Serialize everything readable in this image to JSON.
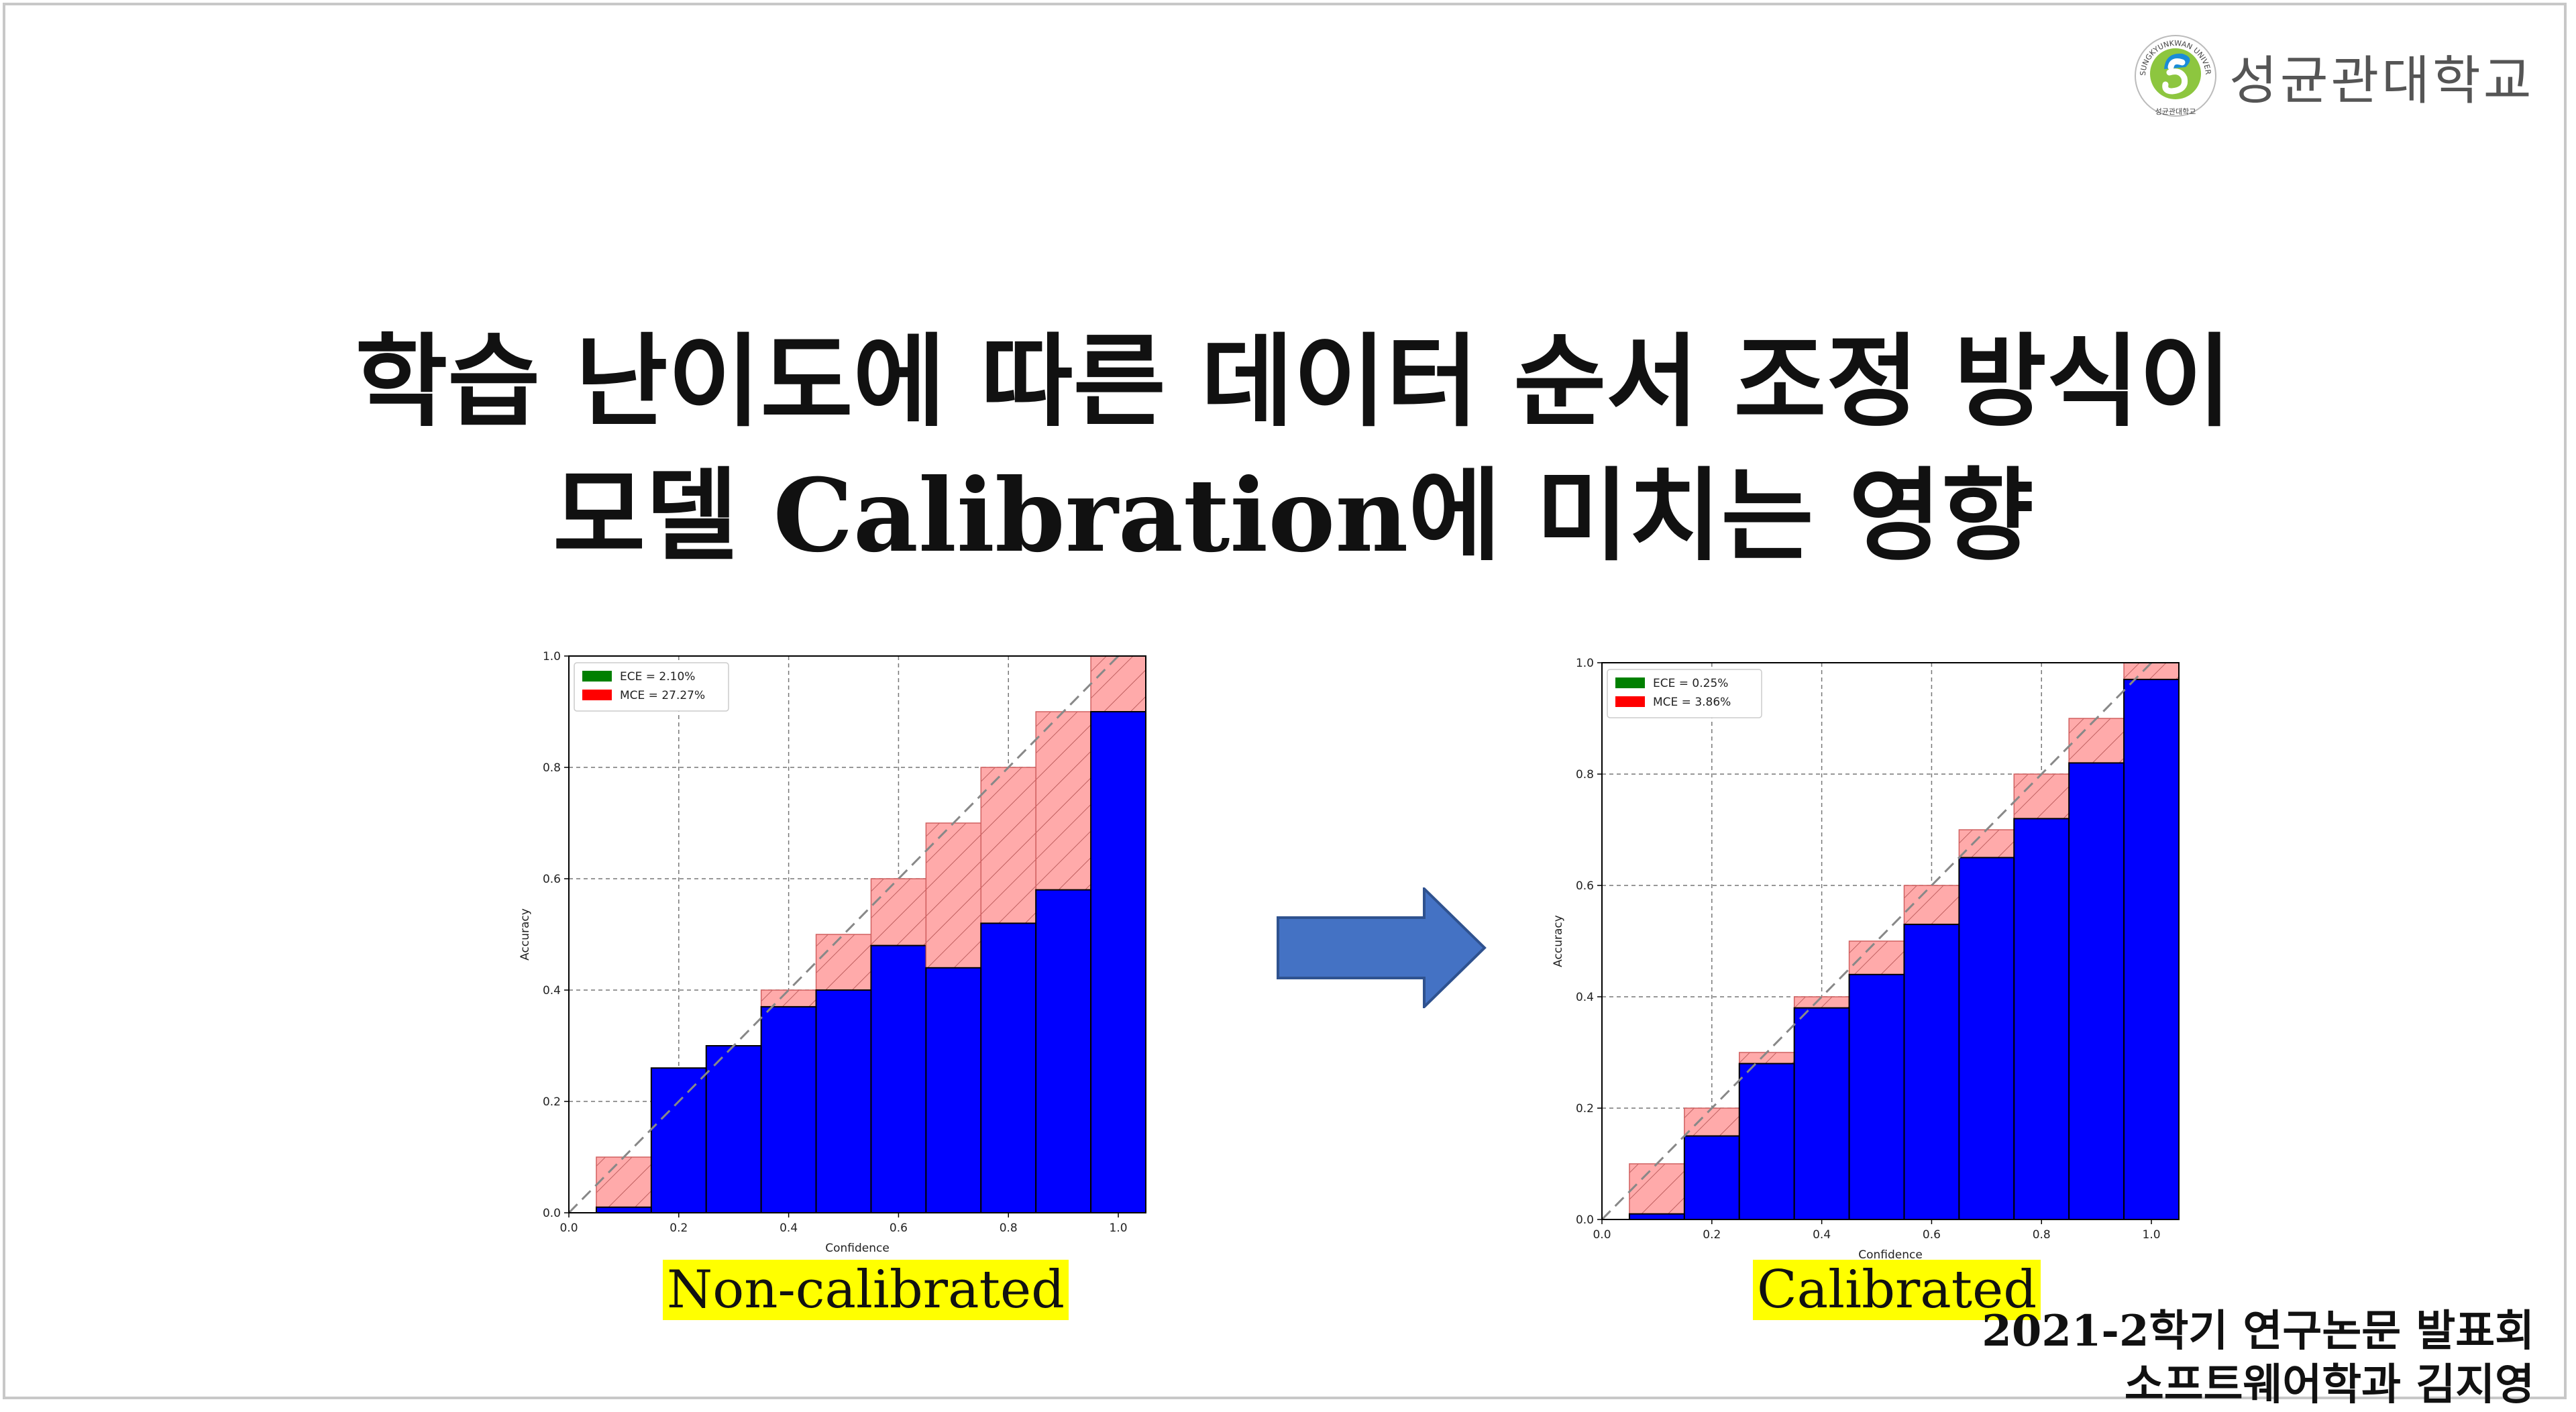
{
  "header": {
    "logo_text": "성균관대학교",
    "logo_ring_text": "SUNGKYUNKWAN UNIVERSITY",
    "logo_sub_text": "성균관대학교"
  },
  "title": {
    "line1": "학습 난이도에 따른 데이터 순서 조정 방식이",
    "line2": "모델 Calibration에 미치는 영향"
  },
  "captions": {
    "left": "Non-calibrated",
    "right": "Calibrated"
  },
  "footer": {
    "line1": "2021-2학기 연구논문 발표회",
    "line2": "소프트웨어학과 김지영"
  },
  "colors": {
    "bar": "#0000ff",
    "gap": "#ffaaaa",
    "ece_legend": "#008000",
    "mce_legend": "#ff0000",
    "arrow_fill": "#4472c4",
    "arrow_stroke": "#2f528f",
    "caption_highlight": "#ffff00"
  },
  "chart_data": [
    {
      "type": "bar",
      "caption": "Non-calibrated",
      "xlabel": "Confidence",
      "ylabel": "Accuracy",
      "xlim": [
        0.0,
        1.05
      ],
      "ylim": [
        0.0,
        1.0
      ],
      "xticks": [
        "0.0",
        "0.2",
        "0.4",
        "0.6",
        "0.8",
        "1.0"
      ],
      "yticks": [
        "0.0",
        "0.2",
        "0.4",
        "0.6",
        "0.8",
        "1.0"
      ],
      "grid": true,
      "legend_position": "top-left",
      "legend": [
        "ECE = 2.10%",
        "MCE = 27.27%"
      ],
      "categories": [
        "0.1",
        "0.2",
        "0.3",
        "0.4",
        "0.5",
        "0.6",
        "0.7",
        "0.8",
        "0.9",
        "1.0"
      ],
      "series": [
        {
          "values": [
            0.01,
            0.26,
            0.3,
            0.37,
            0.4,
            0.48,
            0.44,
            0.52,
            0.58,
            0.9
          ]
        }
      ],
      "expected": [
        0.1,
        0.2,
        0.3,
        0.4,
        0.5,
        0.6,
        0.7,
        0.8,
        0.9,
        1.0
      ]
    },
    {
      "type": "bar",
      "caption": "Calibrated",
      "xlabel": "Confidence",
      "ylabel": "Accuracy",
      "xlim": [
        0.0,
        1.05
      ],
      "ylim": [
        0.0,
        1.0
      ],
      "xticks": [
        "0.0",
        "0.2",
        "0.4",
        "0.6",
        "0.8",
        "1.0"
      ],
      "yticks": [
        "0.0",
        "0.2",
        "0.4",
        "0.6",
        "0.8",
        "1.0"
      ],
      "grid": true,
      "legend_position": "top-left",
      "legend": [
        "ECE = 0.25%",
        "MCE = 3.86%"
      ],
      "categories": [
        "0.1",
        "0.2",
        "0.3",
        "0.4",
        "0.5",
        "0.6",
        "0.7",
        "0.8",
        "0.9",
        "1.0"
      ],
      "series": [
        {
          "values": [
            0.01,
            0.15,
            0.28,
            0.38,
            0.44,
            0.53,
            0.65,
            0.72,
            0.82,
            0.97
          ]
        }
      ],
      "expected": [
        0.1,
        0.2,
        0.3,
        0.4,
        0.5,
        0.6,
        0.7,
        0.8,
        0.9,
        1.0
      ]
    }
  ]
}
